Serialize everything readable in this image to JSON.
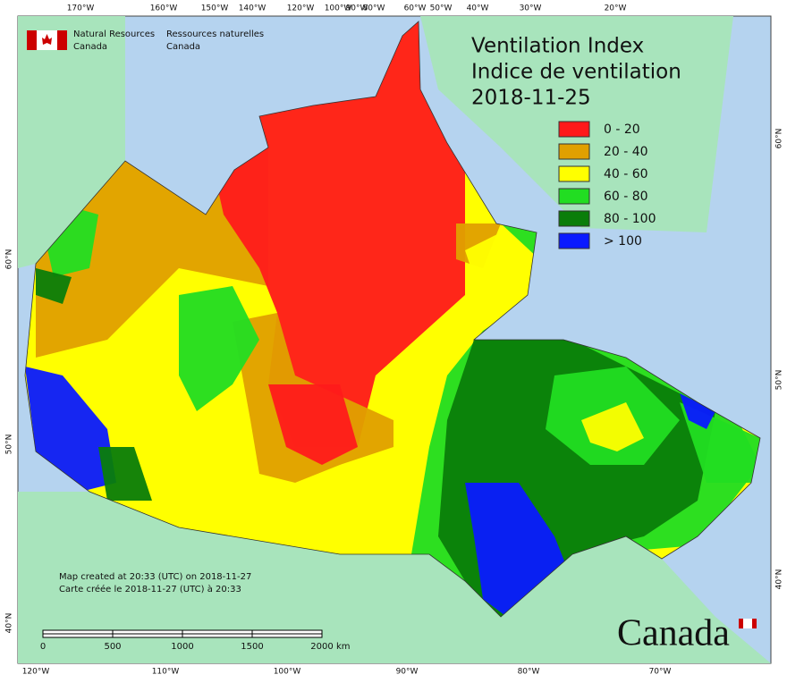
{
  "header": {
    "org_en": [
      "Natural Resources",
      "Canada"
    ],
    "org_fr": [
      "Ressources naturelles",
      "Canada"
    ]
  },
  "title": [
    "Ventilation Index",
    "Indice de ventilation",
    "2018-11-25"
  ],
  "legend": [
    {
      "label": "0 - 20",
      "color": "#ff1a1a"
    },
    {
      "label": "20 - 40",
      "color": "#e0a000"
    },
    {
      "label": "40 - 60",
      "color": "#ffff00"
    },
    {
      "label": "60 - 80",
      "color": "#22dd22"
    },
    {
      "label": "80 - 100",
      "color": "#0a7d0a"
    },
    {
      "label": "> 100",
      "color": "#0a1aff"
    }
  ],
  "top_axis": [
    "170°W",
    "160°W",
    "150°W",
    "140°W",
    "120°W",
    "100°W",
    "90°W",
    "80°W",
    "60°W",
    "50°W",
    "40°W",
    "30°W",
    "20°W"
  ],
  "bottom_axis": [
    "120°W",
    "110°W",
    "100°W",
    "90°W",
    "80°W",
    "70°W"
  ],
  "left_axis": [
    "60°N",
    "50°N",
    "40°N"
  ],
  "right_axis": [
    "60°N",
    "50°N",
    "40°N"
  ],
  "notes": [
    "Map created at 20:33 (UTC) on 2018-11-27",
    "Carte créée le 2018-11-27 (UTC) à 20:33"
  ],
  "scale_bar": {
    "labels": [
      "0",
      "500",
      "1000",
      "1500",
      "2000"
    ],
    "unit": "km"
  },
  "wordmark": "Canada"
}
